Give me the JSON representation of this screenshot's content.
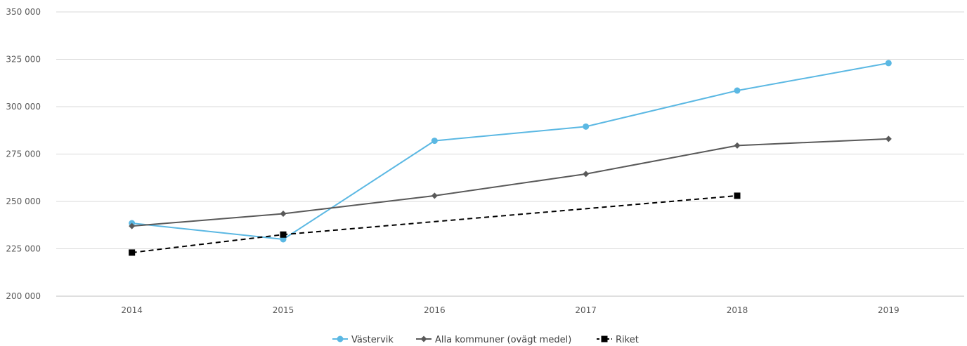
{
  "chart_data": {
    "type": "line",
    "categories": [
      "2014",
      "2015",
      "2016",
      "2017",
      "2018",
      "2019"
    ],
    "ylim": [
      200000,
      350000
    ],
    "yticks": [
      200000,
      225000,
      250000,
      275000,
      300000,
      325000,
      350000
    ],
    "ytick_labels": [
      "200 000",
      "225 000",
      "250 000",
      "275 000",
      "300 000",
      "325 000",
      "350 000"
    ],
    "grid": true,
    "legend_position": "bottom",
    "series": [
      {
        "name": "Västervik",
        "values": [
          238500,
          230000,
          282000,
          289500,
          308500,
          323000
        ],
        "color": "#5bb8e3",
        "marker": "circle",
        "dash": "solid"
      },
      {
        "name": "Alla kommuner (ovägt medel)",
        "values": [
          237000,
          243500,
          253000,
          264500,
          279500,
          283000
        ],
        "color": "#595959",
        "marker": "diamond",
        "dash": "solid"
      },
      {
        "name": "Riket",
        "values": [
          223000,
          232500,
          null,
          null,
          253000,
          null
        ],
        "color": "#000000",
        "marker": "square",
        "dash": "dashed"
      }
    ]
  }
}
